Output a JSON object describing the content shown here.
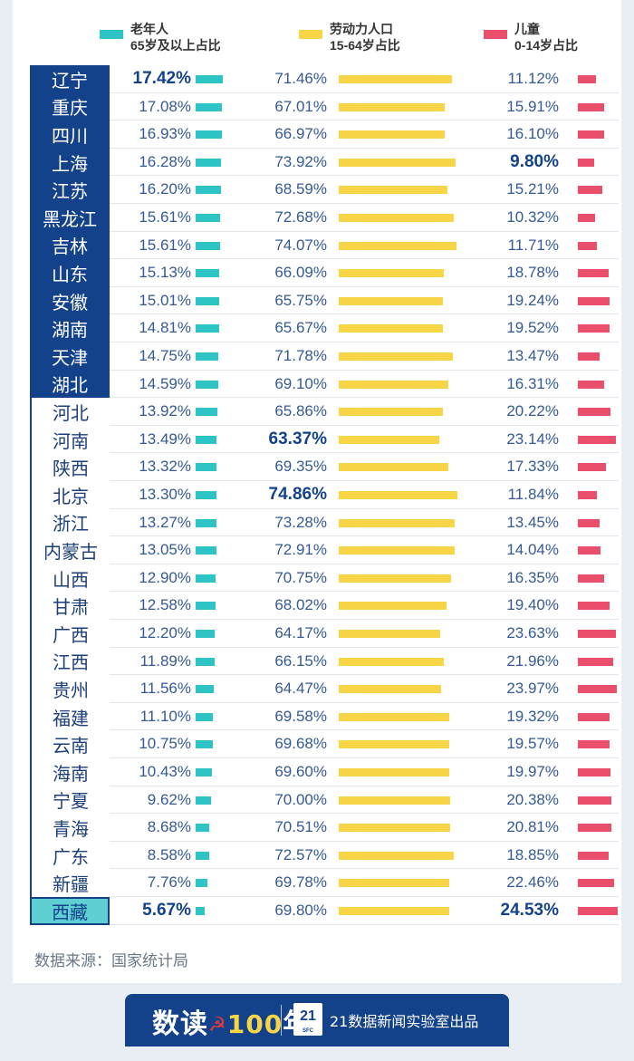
{
  "legend": [
    {
      "line1": "老年人",
      "line2": "65岁及以上占比",
      "color": "#2ec4c6"
    },
    {
      "line1": "劳动力人口",
      "line2": "15-64岁占比",
      "color": "#f7d547"
    },
    {
      "line1": "儿童",
      "line2": "0-14岁占比",
      "color": "#e94f6a"
    }
  ],
  "source": "数据来源：国家统计局",
  "footer": {
    "brand_a": "数读",
    "brand_star": "☭",
    "brand_num": "100",
    "brand_b": "年",
    "logo_num": "21",
    "logo_sub": "SFC",
    "publisher": "21数据新闻实验室出品"
  },
  "colors": {
    "navy": "#13428b",
    "old": "#2ec4c6",
    "work": "#f7d547",
    "child": "#e94f6a"
  },
  "chart_data": {
    "type": "bar",
    "title": "",
    "unit": "%",
    "categories": [
      "辽宁",
      "重庆",
      "四川",
      "上海",
      "江苏",
      "黑龙江",
      "吉林",
      "山东",
      "安徽",
      "湖南",
      "天津",
      "湖北",
      "河北",
      "河南",
      "陕西",
      "北京",
      "浙江",
      "内蒙古",
      "山西",
      "甘肃",
      "广西",
      "江西",
      "贵州",
      "福建",
      "云南",
      "海南",
      "宁夏",
      "青海",
      "广东",
      "新疆",
      "西藏"
    ],
    "series": [
      {
        "name": "老年人 65岁及以上占比",
        "values": [
          17.42,
          17.08,
          16.93,
          16.28,
          16.2,
          15.61,
          15.61,
          15.13,
          15.01,
          14.81,
          14.75,
          14.59,
          13.92,
          13.49,
          13.32,
          13.3,
          13.27,
          13.05,
          12.9,
          12.58,
          12.2,
          11.89,
          11.56,
          11.1,
          10.75,
          10.43,
          9.62,
          8.68,
          8.58,
          7.76,
          5.67
        ]
      },
      {
        "name": "劳动力人口 15-64岁占比",
        "values": [
          71.46,
          67.01,
          66.97,
          73.92,
          68.59,
          72.68,
          74.07,
          66.09,
          65.75,
          65.67,
          71.78,
          69.1,
          65.86,
          63.37,
          69.35,
          74.86,
          73.28,
          72.91,
          70.75,
          68.02,
          64.17,
          66.15,
          64.47,
          69.58,
          69.68,
          69.6,
          70.0,
          70.51,
          72.57,
          69.78,
          69.8
        ]
      },
      {
        "name": "儿童 0-14岁占比",
        "values": [
          11.12,
          15.91,
          16.1,
          9.8,
          15.21,
          10.32,
          11.71,
          18.78,
          19.24,
          19.52,
          13.47,
          16.31,
          20.22,
          23.14,
          17.33,
          11.84,
          13.45,
          14.04,
          16.35,
          19.4,
          23.63,
          21.96,
          23.97,
          19.32,
          19.57,
          19.97,
          20.38,
          20.81,
          18.85,
          22.46,
          24.53
        ]
      }
    ],
    "highlighted": {
      "old": [
        "辽宁",
        "西藏"
      ],
      "work": [
        "河南",
        "北京"
      ],
      "child": [
        "上海",
        "西藏"
      ]
    },
    "province_groups": {
      "dark": 12,
      "light": 18,
      "highlight": 1
    }
  }
}
